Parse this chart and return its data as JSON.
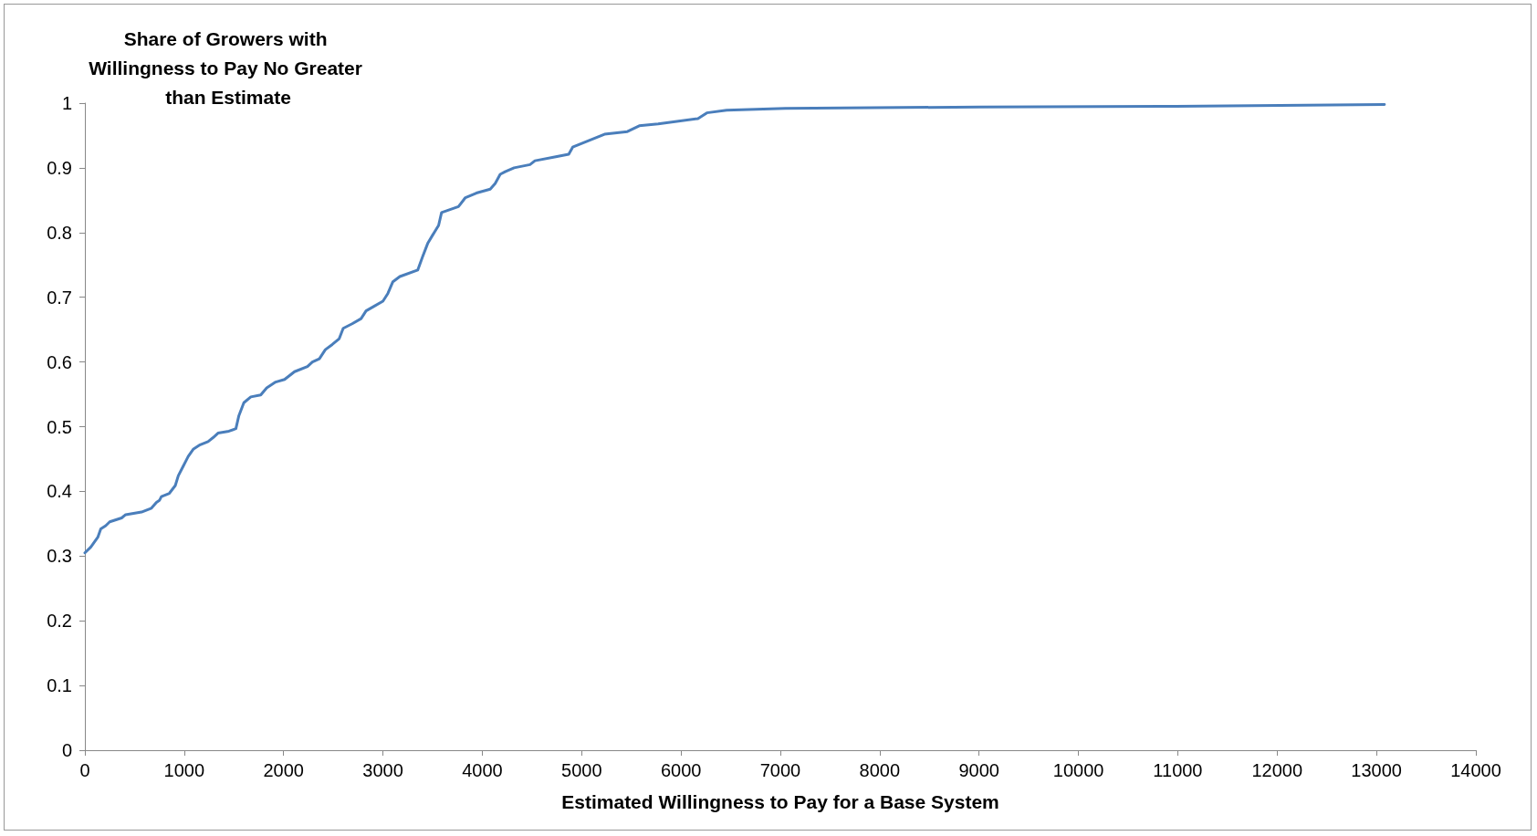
{
  "chart_data": {
    "type": "line",
    "xlabel": "Estimated Willingness to Pay for a Base System",
    "ylabel": "Share of Growers with Willingness to Pay No Greater than Estimate",
    "x": [
      0,
      60,
      130,
      160,
      210,
      250,
      370,
      410,
      570,
      670,
      720,
      750,
      770,
      850,
      910,
      940,
      990,
      1040,
      1090,
      1160,
      1240,
      1290,
      1340,
      1450,
      1520,
      1550,
      1600,
      1670,
      1770,
      1830,
      1920,
      2010,
      2110,
      2240,
      2290,
      2360,
      2420,
      2490,
      2560,
      2600,
      2690,
      2780,
      2830,
      2910,
      3000,
      3050,
      3100,
      3170,
      3350,
      3400,
      3450,
      3500,
      3560,
      3590,
      3760,
      3830,
      3940,
      4080,
      4130,
      4180,
      4230,
      4320,
      4480,
      4530,
      4740,
      4870,
      4910,
      5230,
      5460,
      5580,
      5770,
      6170,
      6260,
      6460,
      7050,
      9010,
      10980,
      13080
    ],
    "series": [
      {
        "color": "#4a7ebb",
        "values": [
          0.305,
          0.314,
          0.329,
          0.342,
          0.347,
          0.353,
          0.359,
          0.364,
          0.368,
          0.374,
          0.383,
          0.386,
          0.392,
          0.397,
          0.409,
          0.424,
          0.439,
          0.454,
          0.465,
          0.472,
          0.477,
          0.483,
          0.49,
          0.493,
          0.497,
          0.517,
          0.537,
          0.546,
          0.549,
          0.56,
          0.569,
          0.573,
          0.585,
          0.593,
          0.6,
          0.605,
          0.619,
          0.627,
          0.636,
          0.652,
          0.659,
          0.667,
          0.679,
          0.686,
          0.694,
          0.706,
          0.724,
          0.732,
          0.742,
          0.763,
          0.783,
          0.796,
          0.811,
          0.831,
          0.84,
          0.854,
          0.861,
          0.867,
          0.876,
          0.89,
          0.894,
          0.9,
          0.905,
          0.911,
          0.917,
          0.921,
          0.932,
          0.952,
          0.956,
          0.965,
          0.968,
          0.976,
          0.985,
          0.989,
          0.992,
          0.994,
          0.995,
          0.998
        ]
      }
    ],
    "xlim": [
      0,
      14000
    ],
    "xticks": [
      0,
      1000,
      2000,
      3000,
      4000,
      5000,
      6000,
      7000,
      8000,
      9000,
      10000,
      11000,
      12000,
      13000,
      14000
    ],
    "ylim": [
      0,
      1
    ],
    "yticks": [
      0,
      0.1,
      0.2,
      0.3,
      0.4,
      0.5,
      0.6,
      0.7,
      0.8,
      0.9,
      1
    ],
    "grid": false,
    "marker": "none",
    "line_style": "solid"
  }
}
